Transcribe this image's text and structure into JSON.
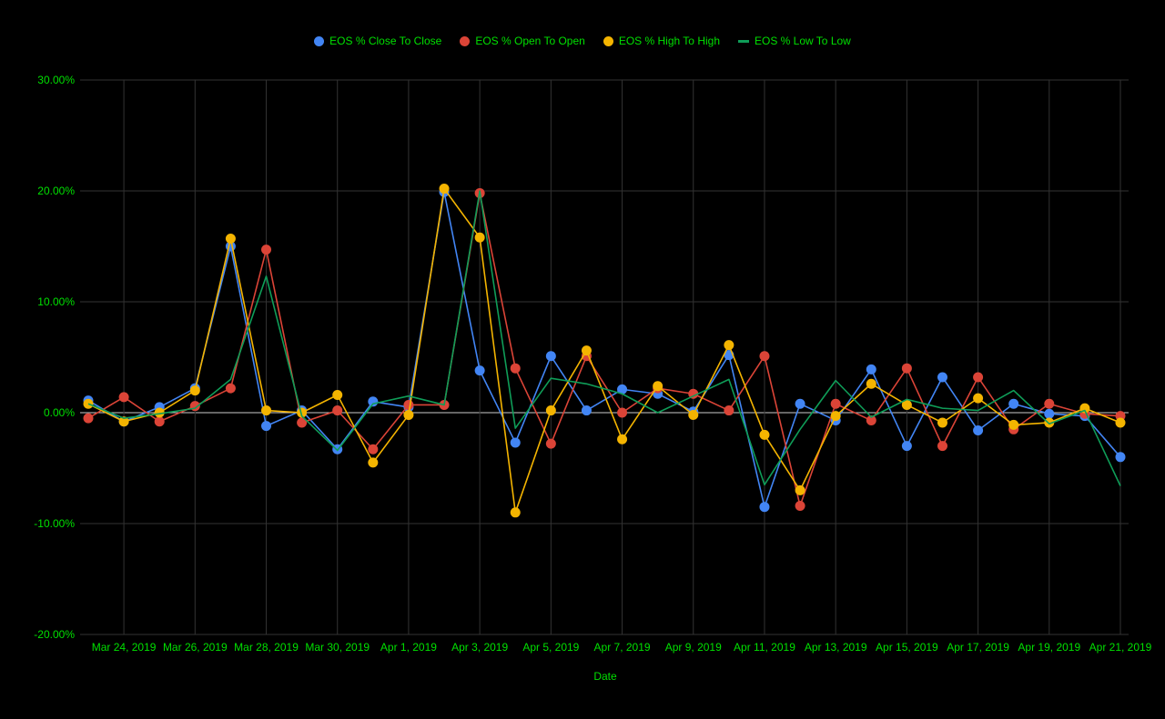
{
  "chart_data": {
    "type": "line",
    "title": "",
    "xlabel": "Date",
    "ylabel": "",
    "ylim": [
      -20,
      30
    ],
    "yticks": [
      "30.00%",
      "20.00%",
      "10.00%",
      "0.00%",
      "-10.00%",
      "-20.00%"
    ],
    "ytick_values": [
      30,
      20,
      10,
      0,
      -10,
      -20
    ],
    "x": [
      "2019-03-23",
      "2019-03-24",
      "2019-03-25",
      "2019-03-26",
      "2019-03-27",
      "2019-03-28",
      "2019-03-29",
      "2019-03-30",
      "2019-03-31",
      "2019-04-01",
      "2019-04-02",
      "2019-04-03",
      "2019-04-04",
      "2019-04-05",
      "2019-04-06",
      "2019-04-07",
      "2019-04-08",
      "2019-04-09",
      "2019-04-10",
      "2019-04-11",
      "2019-04-12",
      "2019-04-13",
      "2019-04-14",
      "2019-04-15",
      "2019-04-16",
      "2019-04-17",
      "2019-04-18",
      "2019-04-19",
      "2019-04-20",
      "2019-04-21"
    ],
    "xtick_labels": [
      "Mar 24, 2019",
      "Mar 26, 2019",
      "Mar 28, 2019",
      "Mar 30, 2019",
      "Apr 1, 2019",
      "Apr 3, 2019",
      "Apr 5, 2019",
      "Apr 7, 2019",
      "Apr 9, 2019",
      "Apr 11, 2019",
      "Apr 13, 2019",
      "Apr 15, 2019",
      "Apr 17, 2019",
      "Apr 19, 2019",
      "Apr 21, 2019"
    ],
    "xtick_dates": [
      "2019-03-24",
      "2019-03-26",
      "2019-03-28",
      "2019-03-30",
      "2019-04-01",
      "2019-04-03",
      "2019-04-05",
      "2019-04-07",
      "2019-04-09",
      "2019-04-11",
      "2019-04-13",
      "2019-04-15",
      "2019-04-17",
      "2019-04-19",
      "2019-04-21"
    ],
    "grid": true,
    "legend_position": "top",
    "series": [
      {
        "name": "EOS % Close To Close",
        "color": "#4285f4",
        "marker": "dot",
        "values": [
          1.1,
          -0.8,
          0.5,
          2.2,
          15.0,
          -1.2,
          0.2,
          -3.3,
          1.0,
          0.5,
          19.9,
          3.8,
          -2.7,
          5.1,
          0.2,
          2.1,
          1.7,
          0.1,
          5.2,
          -8.5,
          0.8,
          -0.7,
          3.9,
          -3.0,
          3.2,
          -1.6,
          0.8,
          -0.1,
          -0.3,
          -4.0
        ]
      },
      {
        "name": "EOS % Open To Open",
        "color": "#db4437",
        "marker": "dot",
        "values": [
          -0.5,
          1.4,
          -0.8,
          0.6,
          2.2,
          14.7,
          -0.9,
          0.2,
          -3.3,
          0.7,
          0.7,
          19.8,
          4.0,
          -2.8,
          5.1,
          0.0,
          2.2,
          1.7,
          0.2,
          5.1,
          -8.4,
          0.8,
          -0.7,
          4.0,
          -3.0,
          3.2,
          -1.5,
          0.8,
          -0.1,
          -0.3
        ]
      },
      {
        "name": "EOS % High To High",
        "color": "#f4b400",
        "marker": "dot",
        "values": [
          0.8,
          -0.8,
          0.0,
          2.0,
          15.7,
          0.2,
          0.0,
          1.6,
          -4.5,
          -0.2,
          20.2,
          15.8,
          -9.0,
          0.2,
          5.6,
          -2.4,
          2.4,
          -0.2,
          6.1,
          -2.0,
          -7.0,
          -0.3,
          2.6,
          0.7,
          -0.9,
          1.3,
          -1.1,
          -0.9,
          0.4,
          -0.9
        ]
      },
      {
        "name": "EOS % Low To Low",
        "color": "#0f9d58",
        "marker": "line",
        "values": [
          0.8,
          -0.5,
          -0.1,
          0.4,
          3.0,
          12.3,
          -0.3,
          -3.4,
          0.8,
          1.5,
          0.7,
          20.0,
          -1.4,
          3.1,
          2.6,
          1.7,
          0.0,
          1.5,
          3.0,
          -6.5,
          -1.5,
          2.9,
          -0.4,
          1.2,
          0.4,
          0.2,
          2.0,
          -1.0,
          0.2,
          -6.6
        ]
      }
    ]
  }
}
